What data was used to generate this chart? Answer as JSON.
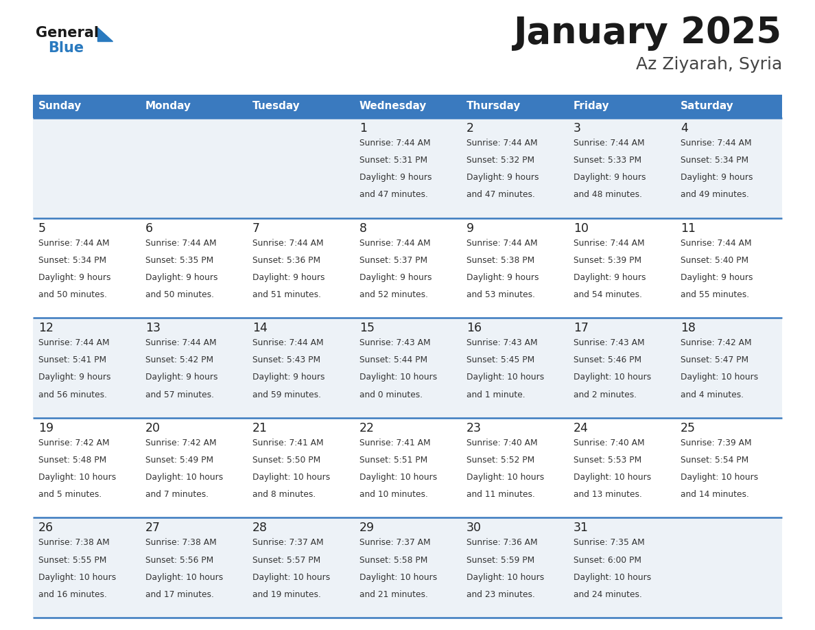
{
  "title": "January 2025",
  "subtitle": "Az Ziyarah, Syria",
  "days_of_week": [
    "Sunday",
    "Monday",
    "Tuesday",
    "Wednesday",
    "Thursday",
    "Friday",
    "Saturday"
  ],
  "header_bg": "#3a7abf",
  "header_text": "#ffffff",
  "cell_bg_odd": "#edf2f7",
  "cell_bg_even": "#ffffff",
  "separator_color": "#3a7abf",
  "day_num_color": "#222222",
  "cell_text_color": "#333333",
  "calendar_data": [
    {
      "day": 1,
      "col": 3,
      "row": 0,
      "sunrise": "7:44 AM",
      "sunset": "5:31 PM",
      "daylight": "9 hours and 47 minutes."
    },
    {
      "day": 2,
      "col": 4,
      "row": 0,
      "sunrise": "7:44 AM",
      "sunset": "5:32 PM",
      "daylight": "9 hours and 47 minutes."
    },
    {
      "day": 3,
      "col": 5,
      "row": 0,
      "sunrise": "7:44 AM",
      "sunset": "5:33 PM",
      "daylight": "9 hours and 48 minutes."
    },
    {
      "day": 4,
      "col": 6,
      "row": 0,
      "sunrise": "7:44 AM",
      "sunset": "5:34 PM",
      "daylight": "9 hours and 49 minutes."
    },
    {
      "day": 5,
      "col": 0,
      "row": 1,
      "sunrise": "7:44 AM",
      "sunset": "5:34 PM",
      "daylight": "9 hours and 50 minutes."
    },
    {
      "day": 6,
      "col": 1,
      "row": 1,
      "sunrise": "7:44 AM",
      "sunset": "5:35 PM",
      "daylight": "9 hours and 50 minutes."
    },
    {
      "day": 7,
      "col": 2,
      "row": 1,
      "sunrise": "7:44 AM",
      "sunset": "5:36 PM",
      "daylight": "9 hours and 51 minutes."
    },
    {
      "day": 8,
      "col": 3,
      "row": 1,
      "sunrise": "7:44 AM",
      "sunset": "5:37 PM",
      "daylight": "9 hours and 52 minutes."
    },
    {
      "day": 9,
      "col": 4,
      "row": 1,
      "sunrise": "7:44 AM",
      "sunset": "5:38 PM",
      "daylight": "9 hours and 53 minutes."
    },
    {
      "day": 10,
      "col": 5,
      "row": 1,
      "sunrise": "7:44 AM",
      "sunset": "5:39 PM",
      "daylight": "9 hours and 54 minutes."
    },
    {
      "day": 11,
      "col": 6,
      "row": 1,
      "sunrise": "7:44 AM",
      "sunset": "5:40 PM",
      "daylight": "9 hours and 55 minutes."
    },
    {
      "day": 12,
      "col": 0,
      "row": 2,
      "sunrise": "7:44 AM",
      "sunset": "5:41 PM",
      "daylight": "9 hours and 56 minutes."
    },
    {
      "day": 13,
      "col": 1,
      "row": 2,
      "sunrise": "7:44 AM",
      "sunset": "5:42 PM",
      "daylight": "9 hours and 57 minutes."
    },
    {
      "day": 14,
      "col": 2,
      "row": 2,
      "sunrise": "7:44 AM",
      "sunset": "5:43 PM",
      "daylight": "9 hours and 59 minutes."
    },
    {
      "day": 15,
      "col": 3,
      "row": 2,
      "sunrise": "7:43 AM",
      "sunset": "5:44 PM",
      "daylight": "10 hours and 0 minutes."
    },
    {
      "day": 16,
      "col": 4,
      "row": 2,
      "sunrise": "7:43 AM",
      "sunset": "5:45 PM",
      "daylight": "10 hours and 1 minute."
    },
    {
      "day": 17,
      "col": 5,
      "row": 2,
      "sunrise": "7:43 AM",
      "sunset": "5:46 PM",
      "daylight": "10 hours and 2 minutes."
    },
    {
      "day": 18,
      "col": 6,
      "row": 2,
      "sunrise": "7:42 AM",
      "sunset": "5:47 PM",
      "daylight": "10 hours and 4 minutes."
    },
    {
      "day": 19,
      "col": 0,
      "row": 3,
      "sunrise": "7:42 AM",
      "sunset": "5:48 PM",
      "daylight": "10 hours and 5 minutes."
    },
    {
      "day": 20,
      "col": 1,
      "row": 3,
      "sunrise": "7:42 AM",
      "sunset": "5:49 PM",
      "daylight": "10 hours and 7 minutes."
    },
    {
      "day": 21,
      "col": 2,
      "row": 3,
      "sunrise": "7:41 AM",
      "sunset": "5:50 PM",
      "daylight": "10 hours and 8 minutes."
    },
    {
      "day": 22,
      "col": 3,
      "row": 3,
      "sunrise": "7:41 AM",
      "sunset": "5:51 PM",
      "daylight": "10 hours and 10 minutes."
    },
    {
      "day": 23,
      "col": 4,
      "row": 3,
      "sunrise": "7:40 AM",
      "sunset": "5:52 PM",
      "daylight": "10 hours and 11 minutes."
    },
    {
      "day": 24,
      "col": 5,
      "row": 3,
      "sunrise": "7:40 AM",
      "sunset": "5:53 PM",
      "daylight": "10 hours and 13 minutes."
    },
    {
      "day": 25,
      "col": 6,
      "row": 3,
      "sunrise": "7:39 AM",
      "sunset": "5:54 PM",
      "daylight": "10 hours and 14 minutes."
    },
    {
      "day": 26,
      "col": 0,
      "row": 4,
      "sunrise": "7:38 AM",
      "sunset": "5:55 PM",
      "daylight": "10 hours and 16 minutes."
    },
    {
      "day": 27,
      "col": 1,
      "row": 4,
      "sunrise": "7:38 AM",
      "sunset": "5:56 PM",
      "daylight": "10 hours and 17 minutes."
    },
    {
      "day": 28,
      "col": 2,
      "row": 4,
      "sunrise": "7:37 AM",
      "sunset": "5:57 PM",
      "daylight": "10 hours and 19 minutes."
    },
    {
      "day": 29,
      "col": 3,
      "row": 4,
      "sunrise": "7:37 AM",
      "sunset": "5:58 PM",
      "daylight": "10 hours and 21 minutes."
    },
    {
      "day": 30,
      "col": 4,
      "row": 4,
      "sunrise": "7:36 AM",
      "sunset": "5:59 PM",
      "daylight": "10 hours and 23 minutes."
    },
    {
      "day": 31,
      "col": 5,
      "row": 4,
      "sunrise": "7:35 AM",
      "sunset": "6:00 PM",
      "daylight": "10 hours and 24 minutes."
    }
  ],
  "num_rows": 5,
  "logo_general_color": "#1a1a1a",
  "logo_blue_color": "#2a7abf",
  "fig_width": 11.88,
  "fig_height": 9.18,
  "dpi": 100
}
